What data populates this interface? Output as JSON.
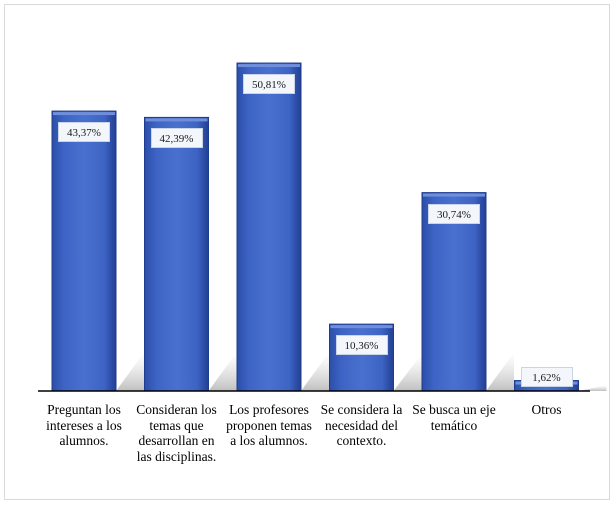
{
  "chart_data": {
    "type": "bar",
    "categories": [
      "Preguntan los intereses a los alumnos.",
      "Consideran los temas que desarrollan en las disciplinas.",
      "Los profesores proponen temas a los alumnos.",
      "Se considera la necesidad del contexto.",
      "Se busca un eje temático",
      "Otros"
    ],
    "values": [
      43.37,
      42.39,
      50.81,
      10.36,
      30.74,
      1.62
    ],
    "data_labels": [
      "43,37%",
      "42,39%",
      "50,81%",
      "10,36%",
      "30,74%",
      "1,62%"
    ],
    "ylim": [
      0,
      55
    ],
    "grid": false,
    "legend": "none",
    "colors": {
      "bar": "#3a5fbf",
      "bar_light": "#6f8fdc",
      "bar_dark": "#1f3d8f",
      "axis": "#000000"
    }
  }
}
